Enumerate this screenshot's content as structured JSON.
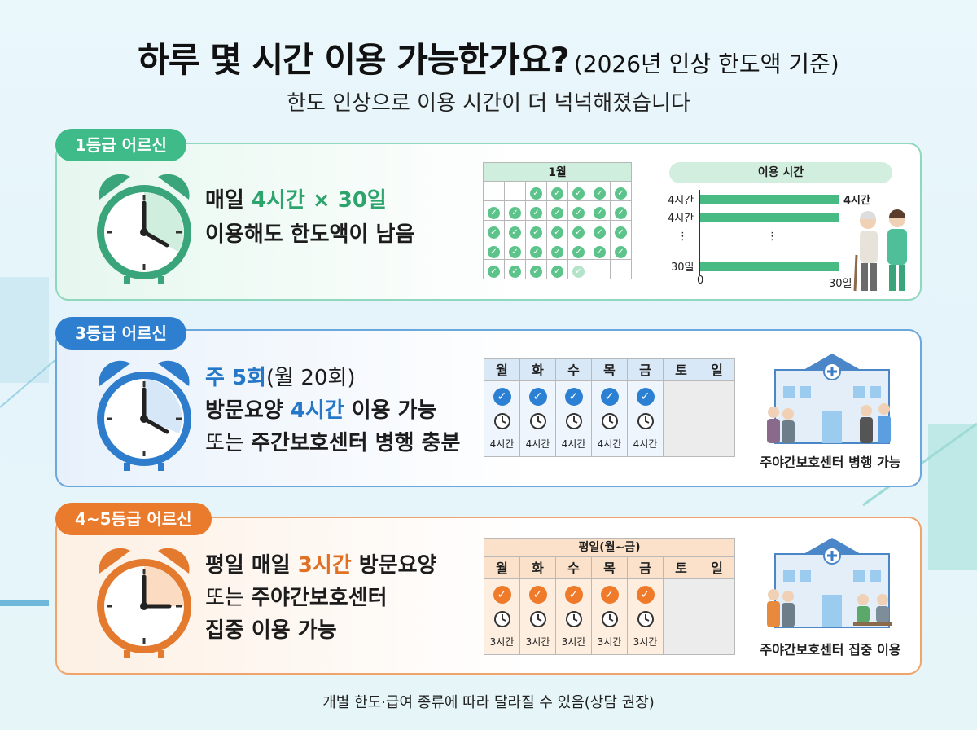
{
  "header": {
    "title": "하루 몇 시간 이용 가능한가요?",
    "title_note": "(2026년 인상 한도액 기준)",
    "subtitle": "한도 인상으로 이용 시간이 더 넉넉해졌습니다"
  },
  "grades": [
    {
      "tag": "1등급 어르신",
      "line1_a": "매일 ",
      "line1_b": "4시간 × 30일",
      "line2": "이용해도 한도액이 남음",
      "calendar_title": "1월",
      "usage_title": "이용 시간",
      "usage_rows": [
        "4시간",
        "4시간",
        "⋮",
        "30일"
      ],
      "usage_value_label": "4시간",
      "axis_start": "0",
      "axis_end": "30일"
    },
    {
      "tag": "3등급 어르신",
      "line1_a": "주 5회",
      "line1_b": "(월 20회)",
      "line2_a": "방문요양 ",
      "line2_b": "4시간",
      "line2_c": " 이용 가능",
      "line3_a": "또는 ",
      "line3_b": "주간보호센터 병행 충분",
      "days": [
        "월",
        "화",
        "수",
        "목",
        "금",
        "토",
        "일"
      ],
      "hours": [
        "4시간",
        "4시간",
        "4시간",
        "4시간",
        "4시간"
      ],
      "illus_caption": "주야간보호센터 병행 가능"
    },
    {
      "tag": "4~5등급 어르신",
      "line1_a": "평일 매일 ",
      "line1_b": "3시간",
      "line1_c": " 방문요양",
      "line2_a": "또는 ",
      "line2_b": "주야간보호센터",
      "line3": "집중 이용 가능",
      "week_title": "평일(월~금)",
      "days": [
        "월",
        "화",
        "수",
        "목",
        "금",
        "토",
        "일"
      ],
      "hours": [
        "3시간",
        "3시간",
        "3시간",
        "3시간",
        "3시간"
      ],
      "illus_caption": "주야간보호센터 집중 이용"
    }
  ],
  "footnote": "개별 한도·급여 종류에 따라 달라질 수 있음(상담 권장)",
  "colors": {
    "green": "#3fba89",
    "blue": "#2e7fcf",
    "orange": "#ea7a2c"
  }
}
